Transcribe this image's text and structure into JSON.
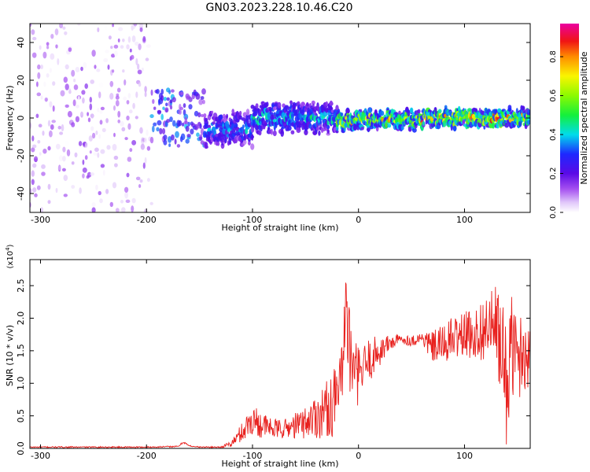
{
  "title": "GN03.2023.228.10.46.C20",
  "chart_data": [
    {
      "type": "heatmap",
      "xlabel": "Height of straight line (km)",
      "ylabel": "Frequency (Hz)",
      "xlim": [
        -310,
        162
      ],
      "ylim": [
        -50,
        50
      ],
      "xticks": [
        -300,
        -200,
        -100,
        0,
        100
      ],
      "yticks": [
        -40,
        -20,
        0,
        20,
        40
      ],
      "colorbar": {
        "label": "Normalized spectral amplitude",
        "range": [
          0.0,
          0.97
        ],
        "ticks": [
          "0.0",
          "0.2",
          "0.4",
          "0.6",
          "0.8"
        ],
        "tick_values": [
          0.0,
          0.2,
          0.4,
          0.6,
          0.8
        ],
        "colormap": "rainbow (white-purple-blue-cyan-green-yellow-orange-red-magenta)"
      },
      "regions": [
        {
          "x": [
            -310,
            -195
          ],
          "freq_extent": [
            -50,
            50
          ],
          "amplitude": [
            0.0,
            0.15
          ],
          "note": "broadband low-amplitude noise"
        },
        {
          "x": [
            -195,
            -145
          ],
          "freq_extent": [
            -15,
            15
          ],
          "amplitude": [
            0.1,
            0.4
          ]
        },
        {
          "x": [
            -145,
            -100
          ],
          "freq_center": -6,
          "freq_halfwidth": 8,
          "amplitude": [
            0.2,
            0.45
          ]
        },
        {
          "x": [
            -100,
            -20
          ],
          "freq_center": 0,
          "freq_halfwidth": 7,
          "amplitude": [
            0.25,
            0.5
          ]
        },
        {
          "x": [
            -20,
            60
          ],
          "freq_center": -1,
          "freq_halfwidth": 4,
          "amplitude": [
            0.3,
            0.85
          ]
        },
        {
          "x": [
            60,
            162
          ],
          "freq_center": 0,
          "freq_halfwidth": 4,
          "amplitude": [
            0.35,
            0.95
          ]
        }
      ]
    },
    {
      "type": "line",
      "xlabel": "Height of straight line (km)",
      "ylabel": "SNR (10 * v/v)",
      "y_multiplier": "(x10",
      "y_multiplier_exp": "4",
      "y_multiplier_close": ")",
      "xlim": [
        -310,
        162
      ],
      "ylim": [
        0,
        2.9
      ],
      "xticks": [
        -300,
        -200,
        -100,
        0,
        100
      ],
      "yticks": [
        "0.0",
        "0.5",
        "1.0",
        "1.5",
        "2.0",
        "2.5"
      ],
      "ytick_values": [
        0.0,
        0.5,
        1.0,
        1.5,
        2.0,
        2.5
      ],
      "color": "#e8211e",
      "series": [
        {
          "x": [
            -310,
            -250,
            -200,
            -170,
            -165,
            -160,
            -150,
            -130,
            -120,
            -110,
            -100,
            -90,
            -80,
            -70,
            -60,
            -50,
            -40,
            -30,
            -20,
            -15,
            -12,
            -10,
            -5,
            0,
            10,
            20,
            30,
            40,
            50,
            60,
            70,
            80,
            90,
            100,
            110,
            120,
            130,
            135,
            140,
            145,
            150,
            155,
            162
          ],
          "y": [
            0.02,
            0.02,
            0.02,
            0.03,
            0.1,
            0.04,
            0.02,
            0.02,
            0.07,
            0.25,
            0.45,
            0.35,
            0.3,
            0.3,
            0.35,
            0.4,
            0.5,
            0.6,
            0.75,
            0.9,
            2.3,
            1.5,
            1.2,
            1.1,
            1.35,
            1.5,
            1.62,
            1.68,
            1.65,
            1.7,
            1.55,
            1.6,
            1.7,
            1.75,
            1.75,
            1.85,
            1.9,
            1.4,
            1.0,
            1.6,
            1.35,
            1.5,
            1.4
          ],
          "spread": [
            0.01,
            0.01,
            0.01,
            0.01,
            0.02,
            0.01,
            0.01,
            0.01,
            0.05,
            0.15,
            0.25,
            0.2,
            0.15,
            0.15,
            0.2,
            0.25,
            0.35,
            0.45,
            0.55,
            0.6,
            0.4,
            0.6,
            0.55,
            0.45,
            0.35,
            0.25,
            0.12,
            0.08,
            0.08,
            0.1,
            0.25,
            0.3,
            0.35,
            0.35,
            0.4,
            0.5,
            0.6,
            0.9,
            1.0,
            0.8,
            0.7,
            0.6,
            0.5
          ]
        }
      ]
    }
  ]
}
